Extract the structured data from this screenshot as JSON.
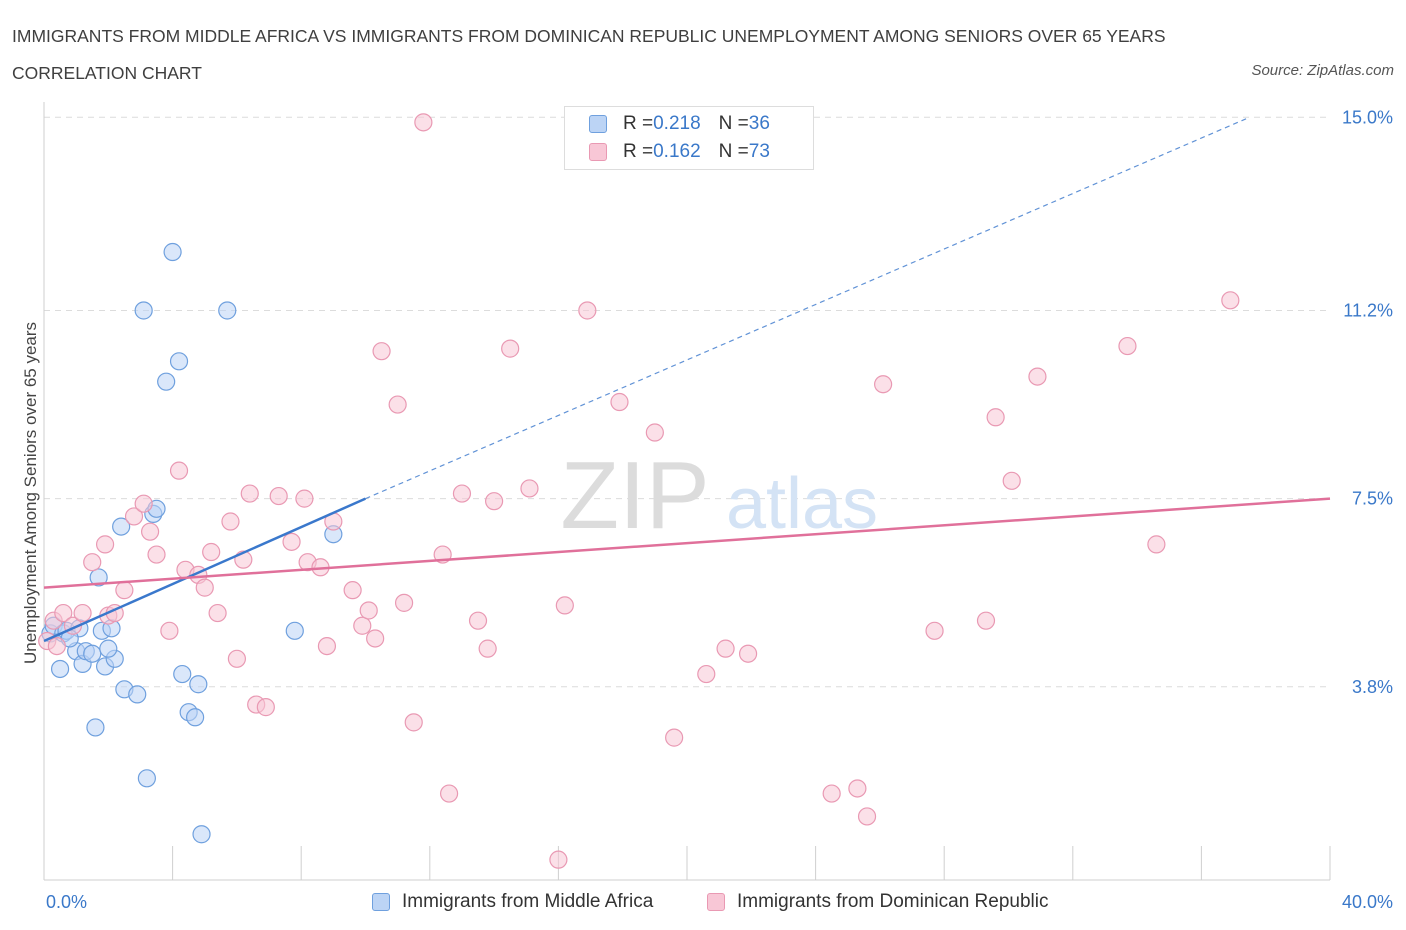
{
  "title": "IMMIGRANTS FROM MIDDLE AFRICA VS IMMIGRANTS FROM DOMINICAN REPUBLIC UNEMPLOYMENT AMONG SENIORS OVER 65 YEARS CORRELATION CHART",
  "source": "Source: ZipAtlas.com",
  "watermark": {
    "zip": "ZIP",
    "atlas": "atlas"
  },
  "legend": {
    "rows": [
      {
        "r_label": "R = ",
        "r_value": "0.218",
        "n_label": "N = ",
        "n_value": "36"
      },
      {
        "r_label": "R = ",
        "r_value": "0.162",
        "n_label": "N = ",
        "n_value": "73"
      }
    ]
  },
  "colors": {
    "blue_fill": "#bcd4f5",
    "blue_stroke": "#6fa0de",
    "blue_line": "#3a78cc",
    "pink_fill": "#f8c7d6",
    "pink_stroke": "#e999b3",
    "pink_line": "#e0709a",
    "axis_label": "#3a78c9",
    "grid": "#dcdcdc"
  },
  "chart_data": {
    "type": "scatter",
    "xlabel": "",
    "ylabel": "Unemployment Among Seniors over 65 years",
    "xlim": [
      0,
      40
    ],
    "ylim": [
      0,
      15.3
    ],
    "x_tick_labels": [
      {
        "value": 0,
        "label": "0.0%"
      },
      {
        "value": 40,
        "label": "40.0%"
      }
    ],
    "y_tick_labels": [
      {
        "value": 3.8,
        "label": "3.8%"
      },
      {
        "value": 7.5,
        "label": "7.5%"
      },
      {
        "value": 11.2,
        "label": "11.2%"
      },
      {
        "value": 15.0,
        "label": "15.0%"
      }
    ],
    "grid": true,
    "legend_position": "top-center",
    "series": [
      {
        "name": "Immigrants from Middle Africa",
        "color": "blue",
        "trend": {
          "x": [
            0,
            10
          ],
          "y": [
            4.7,
            7.5
          ],
          "extended_to": [
            37.5,
            15.0
          ]
        },
        "points": [
          [
            0.2,
            4.85
          ],
          [
            0.3,
            5.0
          ],
          [
            0.5,
            4.15
          ],
          [
            0.6,
            4.85
          ],
          [
            0.7,
            4.9
          ],
          [
            1.0,
            4.5
          ],
          [
            1.1,
            4.95
          ],
          [
            1.2,
            4.25
          ],
          [
            1.3,
            4.5
          ],
          [
            1.5,
            4.45
          ],
          [
            1.7,
            5.95
          ],
          [
            1.8,
            4.9
          ],
          [
            1.9,
            4.2
          ],
          [
            2.1,
            4.95
          ],
          [
            2.2,
            4.35
          ],
          [
            2.4,
            6.95
          ],
          [
            2.5,
            3.75
          ],
          [
            2.9,
            3.65
          ],
          [
            3.1,
            11.2
          ],
          [
            3.2,
            2.0
          ],
          [
            3.4,
            7.2
          ],
          [
            3.5,
            7.3
          ],
          [
            3.8,
            9.8
          ],
          [
            4.0,
            12.35
          ],
          [
            4.2,
            10.2
          ],
          [
            4.3,
            4.05
          ],
          [
            4.5,
            3.3
          ],
          [
            4.7,
            3.2
          ],
          [
            4.8,
            3.85
          ],
          [
            4.9,
            0.9
          ],
          [
            5.7,
            11.2
          ],
          [
            7.8,
            4.9
          ],
          [
            9.0,
            6.8
          ],
          [
            1.6,
            3.0
          ],
          [
            0.8,
            4.75
          ],
          [
            2.0,
            4.55
          ]
        ]
      },
      {
        "name": "Immigrants from Dominican Republic",
        "color": "pink",
        "trend": {
          "x": [
            0,
            40
          ],
          "y": [
            5.75,
            7.5
          ]
        },
        "points": [
          [
            0.1,
            4.7
          ],
          [
            0.3,
            5.1
          ],
          [
            0.6,
            5.25
          ],
          [
            0.9,
            5.0
          ],
          [
            1.2,
            5.25
          ],
          [
            1.5,
            6.25
          ],
          [
            1.9,
            6.6
          ],
          [
            2.0,
            5.2
          ],
          [
            2.2,
            5.25
          ],
          [
            2.5,
            5.7
          ],
          [
            2.8,
            7.15
          ],
          [
            3.1,
            7.4
          ],
          [
            3.3,
            6.85
          ],
          [
            3.5,
            6.4
          ],
          [
            3.9,
            4.9
          ],
          [
            4.2,
            8.05
          ],
          [
            4.4,
            6.1
          ],
          [
            4.8,
            6.0
          ],
          [
            5.0,
            5.75
          ],
          [
            5.2,
            6.45
          ],
          [
            5.4,
            5.25
          ],
          [
            5.8,
            7.05
          ],
          [
            6.0,
            4.35
          ],
          [
            6.2,
            6.3
          ],
          [
            6.4,
            7.6
          ],
          [
            6.6,
            3.45
          ],
          [
            6.9,
            3.4
          ],
          [
            7.3,
            7.55
          ],
          [
            7.7,
            6.65
          ],
          [
            8.1,
            7.5
          ],
          [
            8.2,
            6.25
          ],
          [
            8.6,
            6.15
          ],
          [
            8.8,
            4.6
          ],
          [
            9.0,
            7.05
          ],
          [
            9.6,
            5.7
          ],
          [
            9.9,
            5.0
          ],
          [
            10.1,
            5.3
          ],
          [
            10.3,
            4.75
          ],
          [
            10.5,
            10.4
          ],
          [
            11.0,
            9.35
          ],
          [
            11.2,
            5.45
          ],
          [
            11.5,
            3.1
          ],
          [
            11.8,
            14.9
          ],
          [
            12.4,
            6.4
          ],
          [
            12.6,
            1.7
          ],
          [
            13.0,
            7.6
          ],
          [
            13.5,
            5.1
          ],
          [
            13.8,
            4.55
          ],
          [
            14.0,
            7.45
          ],
          [
            14.5,
            10.45
          ],
          [
            15.1,
            7.7
          ],
          [
            16.0,
            0.4
          ],
          [
            16.2,
            5.4
          ],
          [
            16.9,
            11.2
          ],
          [
            17.9,
            9.4
          ],
          [
            19.0,
            8.8
          ],
          [
            19.6,
            2.8
          ],
          [
            20.6,
            4.05
          ],
          [
            21.2,
            4.55
          ],
          [
            21.9,
            4.45
          ],
          [
            24.5,
            1.7
          ],
          [
            25.3,
            1.8
          ],
          [
            25.6,
            1.25
          ],
          [
            26.1,
            9.75
          ],
          [
            27.7,
            4.9
          ],
          [
            29.3,
            5.1
          ],
          [
            29.6,
            9.1
          ],
          [
            30.1,
            7.85
          ],
          [
            30.9,
            9.9
          ],
          [
            33.7,
            10.5
          ],
          [
            34.6,
            6.6
          ],
          [
            36.9,
            11.4
          ],
          [
            0.4,
            4.6
          ]
        ]
      }
    ]
  }
}
